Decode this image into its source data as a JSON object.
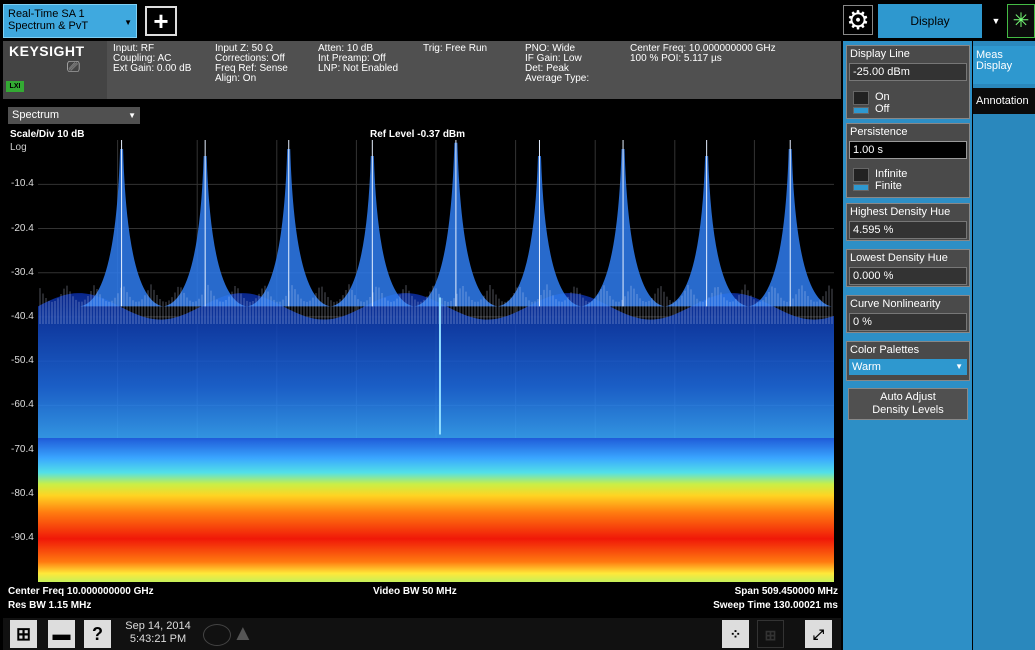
{
  "top": {
    "mode_line1": "Real-Time SA 1",
    "mode_line2": "Spectrum & PvT",
    "add_icon": "+",
    "gear_icon": "⚙",
    "menu_selected": "Display",
    "dropdown_arrow": "▼"
  },
  "info": {
    "brand": "KEYSIGHT",
    "lxi": "LXI",
    "col1": "Input: RF\nCoupling: AC\nExt Gain: 0.00 dB",
    "col2": "Input Z: 50 Ω\nCorrections: Off\nFreq Ref: Sense\nAlign: On",
    "col3": "Atten: 10 dB\nInt Preamp: Off\nLNP: Not Enabled",
    "col4": "Trig: Free Run",
    "col5": "PNO: Wide\nIF Gain: Low\nDet: Peak\nAverage Type:",
    "col6": "Center Freq: 10.000000000 GHz\n100 % POI: 5.117 µs"
  },
  "graph": {
    "view": "Spectrum",
    "scale_div": "Scale/Div 10 dB",
    "scale_type": "Log",
    "ref_level": "Ref Level -0.37 dBm",
    "y_ticks": [
      "-10.4",
      "-20.4",
      "-30.4",
      "-40.4",
      "-50.4",
      "-60.4",
      "-70.4",
      "-80.4",
      "-90.4"
    ],
    "center_freq": "Center Freq 10.000000000 GHz",
    "res_bw": "Res BW 1.15 MHz",
    "video_bw": "Video BW 50 MHz",
    "span": "Span 509.450000 MHz",
    "sweep_time": "Sweep Time 130.00021 ms"
  },
  "chart_data": {
    "type": "heatmap",
    "description_label": "density spectrum",
    "ylim": [
      -100.37,
      -0.37
    ],
    "yticks": [
      -10.4,
      -20.4,
      -30.4,
      -40.4,
      -50.4,
      -60.4,
      -70.4,
      -80.4,
      -90.4
    ],
    "peaks": [
      {
        "x": 0.105,
        "level": -2.4
      },
      {
        "x": 0.21,
        "level": -4.0
      },
      {
        "x": 0.315,
        "level": -2.4
      },
      {
        "x": 0.42,
        "level": -4.0
      },
      {
        "x": 0.525,
        "level": -1.0
      },
      {
        "x": 0.63,
        "level": -4.0
      },
      {
        "x": 0.735,
        "level": -2.4
      },
      {
        "x": 0.84,
        "level": -4.0
      },
      {
        "x": 0.945,
        "level": -2.4
      }
    ],
    "noise_floor_dbm": -75
  },
  "taskbar": {
    "date": "Sep 14, 2014",
    "time": "5:43:21 PM",
    "help": "?"
  },
  "panel": {
    "display_line_title": "Display Line",
    "display_line_value": "-25.00 dBm",
    "on_label": "On",
    "off_label": "Off",
    "persistence_title": "Persistence",
    "persistence_value": "1.00 s",
    "infinite_label": "Infinite",
    "finite_label": "Finite",
    "highest_title": "Highest Density Hue",
    "highest_value": "4.595 %",
    "lowest_title": "Lowest Density Hue",
    "lowest_value": "0.000 %",
    "curve_title": "Curve Nonlinearity",
    "curve_value": "0 %",
    "palette_title": "Color Palettes",
    "palette_value": "Warm",
    "auto_adjust_line1": "Auto Adjust",
    "auto_adjust_line2": "Density Levels"
  },
  "tabs": {
    "meas_display_1": "Meas",
    "meas_display_2": "Display",
    "annotation": "Annotation"
  }
}
